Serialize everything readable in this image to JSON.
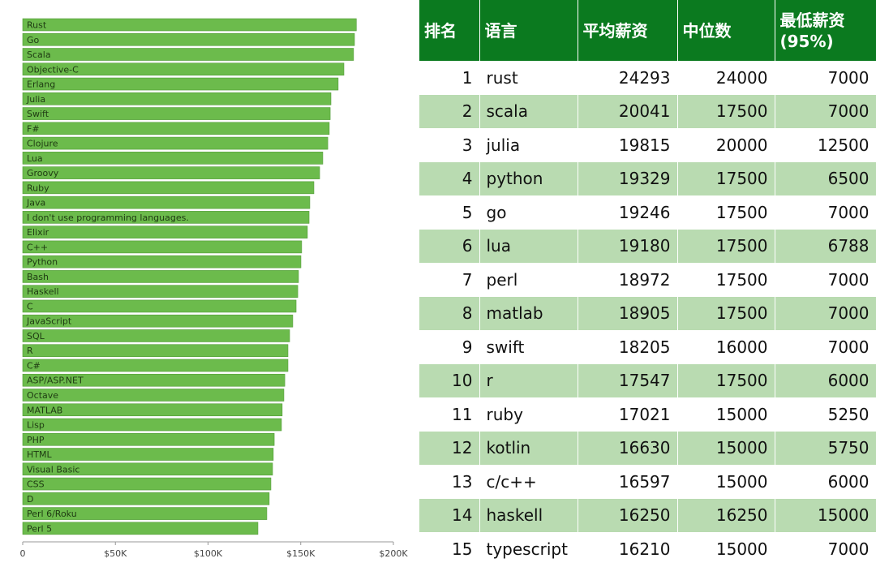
{
  "chart_data": {
    "type": "hbar",
    "categories": [
      "Rust",
      "Go",
      "Scala",
      "Objective-C",
      "Erlang",
      "Julia",
      "Swift",
      "F#",
      "Clojure",
      "Lua",
      "Groovy",
      "Ruby",
      "Java",
      "I don't use programming languages.",
      "Elixir",
      "C++",
      "Python",
      "Bash",
      "Haskell",
      "C",
      "JavaScript",
      "SQL",
      "R",
      "C#",
      "ASP/ASP.NET",
      "Octave",
      "MATLAB",
      "Lisp",
      "PHP",
      "HTML",
      "Visual Basic",
      "CSS",
      "D",
      "Perl 6/Roku",
      "Perl 5"
    ],
    "values": [
      180000,
      179000,
      178500,
      173300,
      170200,
      166300,
      165900,
      165400,
      164600,
      161900,
      160200,
      157100,
      154900,
      154500,
      153600,
      150500,
      150100,
      148800,
      148400,
      147500,
      145700,
      144000,
      143100,
      143100,
      141400,
      140900,
      140000,
      139600,
      135700,
      135200,
      134800,
      133900,
      133000,
      131700,
      126900
    ],
    "color": "#6cbb4c",
    "xlim": [
      0,
      200000
    ],
    "xticks": [
      0,
      {
        "value": 50000,
        "label": "$50K"
      },
      {
        "value": 100000,
        "label": "$100K"
      },
      {
        "value": 150000,
        "label": "$150K"
      },
      {
        "value": 200000,
        "label": "$200K"
      }
    ],
    "grid": false
  },
  "table": {
    "header": [
      "排名",
      "语言",
      "平均薪资",
      "中位数",
      "最低薪资\n(95%)"
    ],
    "rows": [
      [
        1,
        "rust",
        24293,
        24000,
        7000
      ],
      [
        2,
        "scala",
        20041,
        17500,
        7000
      ],
      [
        3,
        "julia",
        19815,
        20000,
        12500
      ],
      [
        4,
        "python",
        19329,
        17500,
        6500
      ],
      [
        5,
        "go",
        19246,
        17500,
        7000
      ],
      [
        6,
        "lua",
        19180,
        17500,
        6788
      ],
      [
        7,
        "perl",
        18972,
        17500,
        7000
      ],
      [
        8,
        "matlab",
        18905,
        17500,
        7000
      ],
      [
        9,
        "swift",
        18205,
        16000,
        7000
      ],
      [
        10,
        "r",
        17547,
        17500,
        6000
      ],
      [
        11,
        "ruby",
        17021,
        15000,
        5250
      ],
      [
        12,
        "kotlin",
        16630,
        15000,
        5750
      ],
      [
        13,
        "c/c++",
        16597,
        15000,
        6000
      ],
      [
        14,
        "haskell",
        16250,
        16250,
        15000
      ],
      [
        15,
        "typescript",
        16210,
        15000,
        7000
      ]
    ]
  }
}
